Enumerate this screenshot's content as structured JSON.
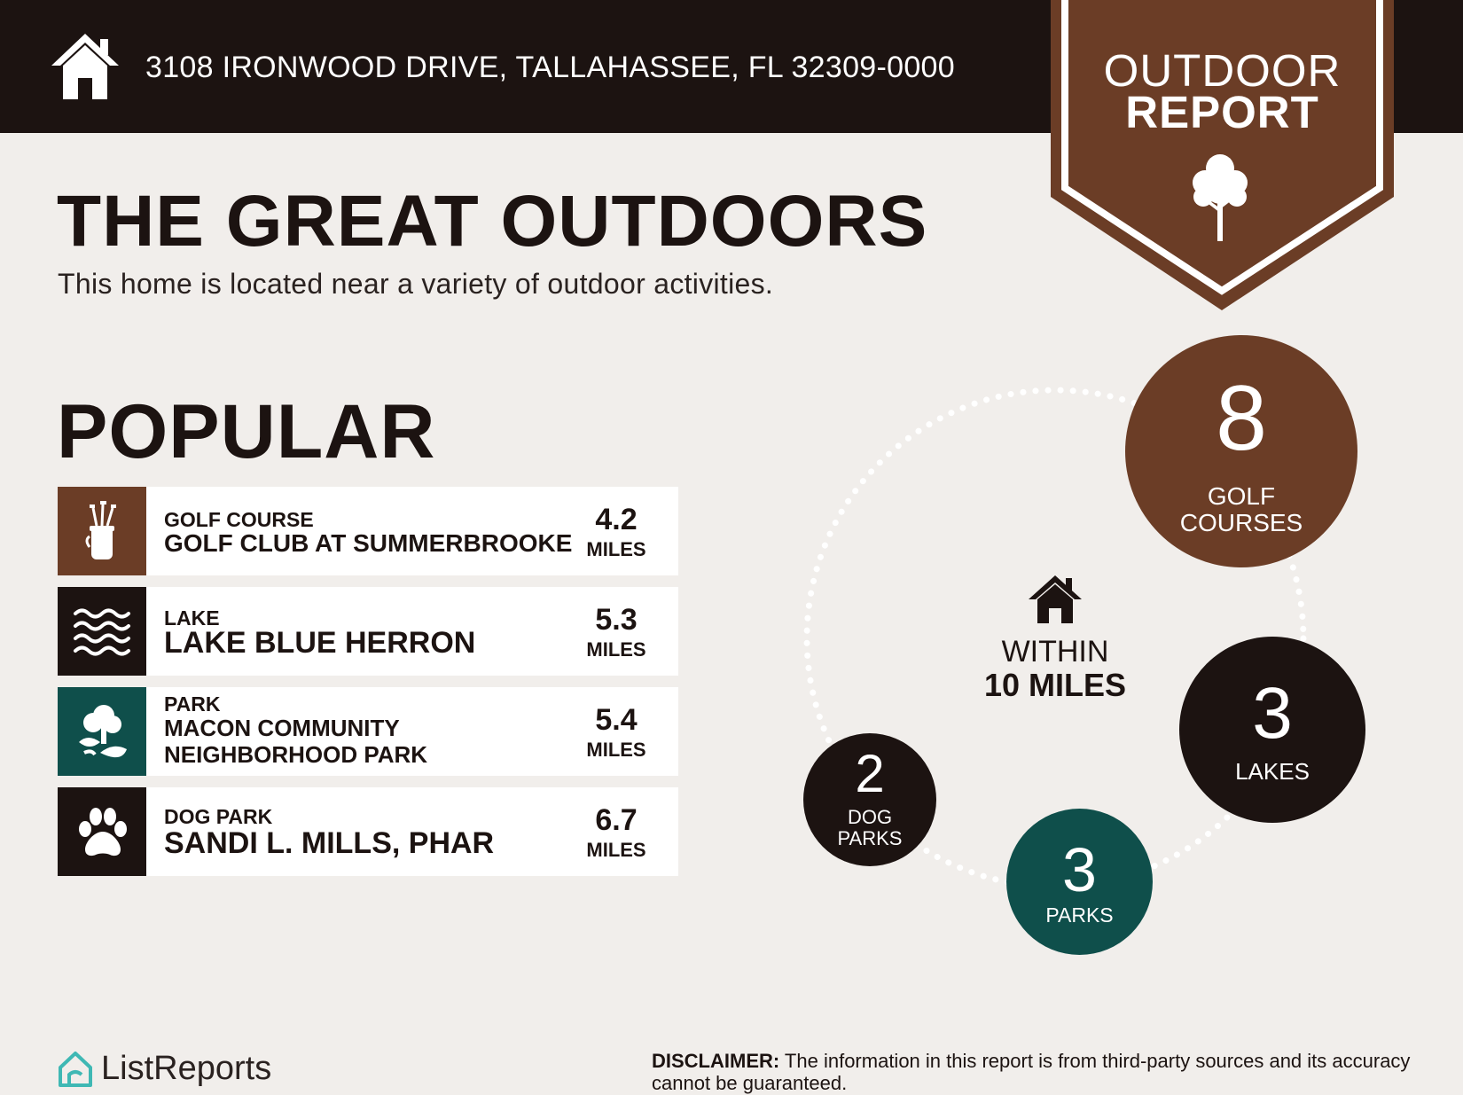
{
  "header": {
    "address": "3108 IRONWOOD DRIVE, TALLAHASSEE, FL 32309-0000",
    "home_icon": "house-icon"
  },
  "badge": {
    "line1": "OUTDOOR",
    "line2": "REPORT",
    "icon": "tree-icon",
    "color": "#6b3d26"
  },
  "intro": {
    "title": "THE GREAT OUTDOORS",
    "subtitle": "This home is located near a variety of outdoor activities."
  },
  "popular": {
    "title": "POPULAR",
    "items": [
      {
        "category": "GOLF COURSE",
        "name": "GOLF CLUB AT SUMMERBROOKE",
        "distance": "4.2",
        "unit": "MILES",
        "icon": "golf-bag-icon",
        "color": "#6b3d26"
      },
      {
        "category": "LAKE",
        "name": "LAKE BLUE HERRON",
        "distance": "5.3",
        "unit": "MILES",
        "icon": "water-waves-icon",
        "color": "#1c1311"
      },
      {
        "category": "PARK",
        "name_line1": "MACON COMMUNITY",
        "name_line2": "NEIGHBORHOOD PARK",
        "distance": "5.4",
        "unit": "MILES",
        "icon": "park-tree-icon",
        "color": "#0f4f4b"
      },
      {
        "category": "DOG PARK",
        "name": "SANDI L. MILLS, PHAR",
        "distance": "6.7",
        "unit": "MILES",
        "icon": "paw-icon",
        "color": "#1c1311"
      }
    ]
  },
  "summary": {
    "within_line1": "WITHIN",
    "within_line2": "10 MILES",
    "golf": {
      "count": "8",
      "label1": "GOLF",
      "label2": "COURSES",
      "color": "#6b3d26"
    },
    "lakes": {
      "count": "3",
      "label": "LAKES",
      "color": "#1c1311"
    },
    "parks": {
      "count": "3",
      "label": "PARKS",
      "color": "#0f4f4b"
    },
    "dog_parks": {
      "count": "2",
      "label1": "DOG",
      "label2": "PARKS",
      "color": "#1c1311"
    }
  },
  "footer": {
    "logo": "ListReports",
    "disclaimer_label": "DISCLAIMER:",
    "disclaimer_text": " The information in this report is from third-party sources and its accuracy cannot be guaranteed."
  }
}
